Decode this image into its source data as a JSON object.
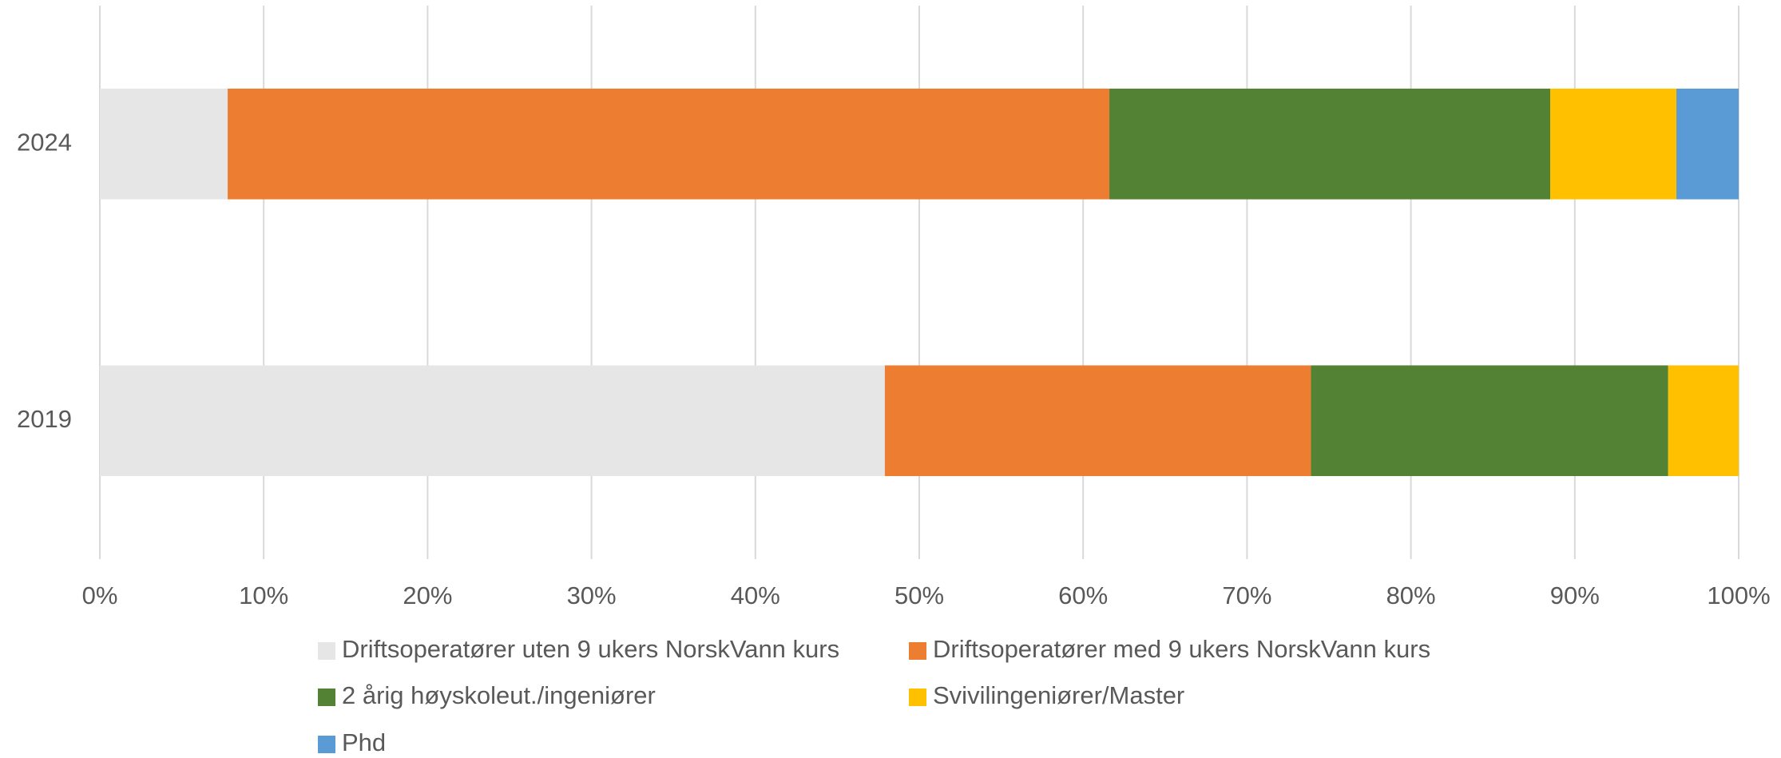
{
  "chart_data": {
    "type": "bar",
    "orientation": "horizontal",
    "stacked": true,
    "categories": [
      "2024",
      "2019"
    ],
    "series": [
      {
        "name": "Driftsoperatører uten 9 ukers NorskVann kurs",
        "color": "#e7e6e6",
        "values": [
          7.8,
          47.9
        ]
      },
      {
        "name": "Driftsoperatører med 9 ukers NorskVann kurs",
        "color": "#ed7d31",
        "values": [
          53.8,
          26.0
        ]
      },
      {
        "name": "2 årig høyskoleut./ingeniører",
        "color": "#548235",
        "values": [
          26.9,
          21.8
        ]
      },
      {
        "name": "Svivilingeniører/Master",
        "color": "#ffc000",
        "values": [
          7.7,
          4.3
        ]
      },
      {
        "name": "Phd",
        "color": "#5b9bd5",
        "values": [
          3.8,
          0
        ]
      }
    ],
    "xlim": [
      0,
      100
    ],
    "xticks": [
      {
        "value": 0,
        "label": "0%"
      },
      {
        "value": 10,
        "label": "10%"
      },
      {
        "value": 20,
        "label": "20%"
      },
      {
        "value": 30,
        "label": "30%"
      },
      {
        "value": 40,
        "label": "40%"
      },
      {
        "value": 50,
        "label": "50%"
      },
      {
        "value": 60,
        "label": "60%"
      },
      {
        "value": 70,
        "label": "70%"
      },
      {
        "value": 80,
        "label": "80%"
      },
      {
        "value": 90,
        "label": "90%"
      },
      {
        "value": 100,
        "label": "100%"
      }
    ],
    "grid": true,
    "legend": "bottom"
  }
}
